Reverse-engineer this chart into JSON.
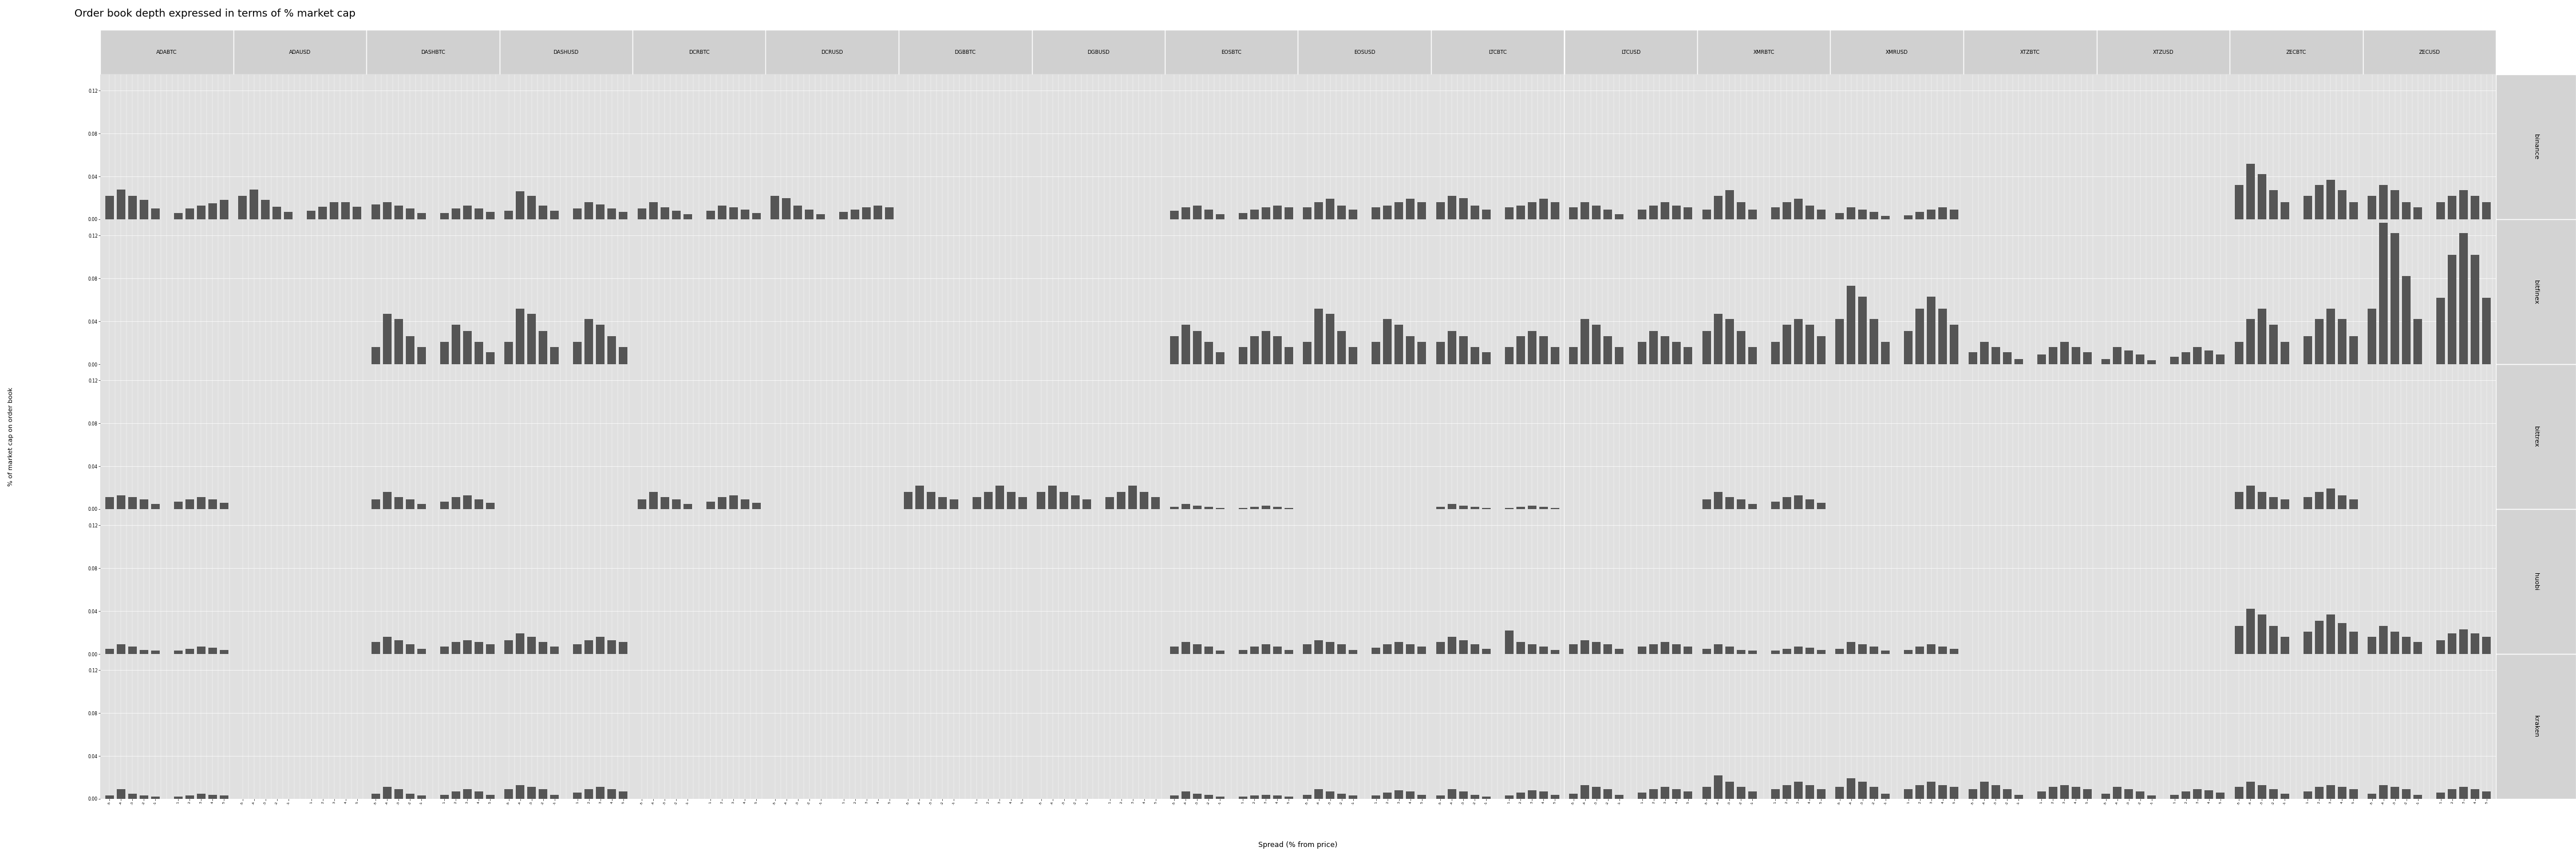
{
  "title": "Order book depth expressed in terms of % market cap",
  "xlabel": "Spread (% from price)",
  "ylabel": "% of market cap on order book",
  "assets": [
    "ADABTC",
    "ADAUSD",
    "DASHBTC",
    "DASHUSD",
    "DCRBTC",
    "DCRUSD",
    "DGBBTC",
    "DGBUSD",
    "EOSBTC",
    "EOSUSD",
    "LTCBTC",
    "LTCUSD",
    "XMRBTC",
    "XMRUSD",
    "XTZBTC",
    "XTZUSD",
    "ZECBTC",
    "ZECUSD"
  ],
  "exchanges": [
    "binance",
    "bitfinex",
    "bittrex",
    "huobi",
    "kraken"
  ],
  "spread_x": [
    -5,
    -4,
    -3,
    -2,
    -1,
    1,
    2,
    3,
    4,
    5
  ],
  "ylim": [
    0,
    0.135
  ],
  "yticks": [
    0.0,
    0.04,
    0.08,
    0.12
  ],
  "bar_color": "#555555",
  "panel_bg": "#e0e0e0",
  "header_bg": "#d0d0d0",
  "exchange_bg": "#d3d3d3",
  "fig_bg": "#ffffff",
  "data": {
    "binance": {
      "ADABTC": [
        0.022,
        0.028,
        0.022,
        0.018,
        0.01,
        0.006,
        0.01,
        0.013,
        0.015,
        0.018
      ],
      "ADAUSD": [
        0.022,
        0.028,
        0.018,
        0.012,
        0.007,
        0.008,
        0.012,
        0.016,
        0.016,
        0.012
      ],
      "DASHBTC": [
        0.014,
        0.016,
        0.013,
        0.01,
        0.006,
        0.006,
        0.01,
        0.013,
        0.01,
        0.007
      ],
      "DASHUSD": [
        0.008,
        0.026,
        0.022,
        0.013,
        0.008,
        0.01,
        0.016,
        0.014,
        0.01,
        0.007
      ],
      "DCRBTC": [
        0.01,
        0.016,
        0.011,
        0.008,
        0.005,
        0.008,
        0.013,
        0.011,
        0.009,
        0.006
      ],
      "DCRUSD": [
        0.022,
        0.02,
        0.013,
        0.009,
        0.005,
        0.007,
        0.009,
        0.011,
        0.013,
        0.011
      ],
      "DGBBTC": [
        0.0,
        0.0,
        0.0,
        0.0,
        0.0,
        0.0,
        0.0,
        0.0,
        0.0,
        0.0
      ],
      "DGBUSD": [
        0.0,
        0.0,
        0.0,
        0.0,
        0.0,
        0.0,
        0.0,
        0.0,
        0.0,
        0.0
      ],
      "EOSBTC": [
        0.008,
        0.011,
        0.013,
        0.009,
        0.005,
        0.006,
        0.009,
        0.011,
        0.013,
        0.011
      ],
      "EOSUSD": [
        0.011,
        0.016,
        0.019,
        0.013,
        0.009,
        0.011,
        0.013,
        0.016,
        0.019,
        0.016
      ],
      "LTCBTC": [
        0.016,
        0.022,
        0.02,
        0.013,
        0.009,
        0.011,
        0.013,
        0.016,
        0.019,
        0.016
      ],
      "LTCUSD": [
        0.011,
        0.016,
        0.013,
        0.009,
        0.005,
        0.009,
        0.013,
        0.016,
        0.013,
        0.011
      ],
      "XMRBTC": [
        0.009,
        0.022,
        0.027,
        0.016,
        0.009,
        0.011,
        0.016,
        0.019,
        0.013,
        0.009
      ],
      "XMRUSD": [
        0.006,
        0.011,
        0.009,
        0.007,
        0.003,
        0.004,
        0.007,
        0.009,
        0.011,
        0.009
      ],
      "XTZBTC": [
        0.0,
        0.0,
        0.0,
        0.0,
        0.0,
        0.0,
        0.0,
        0.0,
        0.0,
        0.0
      ],
      "XTZUSD": [
        0.0,
        0.0,
        0.0,
        0.0,
        0.0,
        0.0,
        0.0,
        0.0,
        0.0,
        0.0
      ],
      "ZECBTC": [
        0.032,
        0.052,
        0.042,
        0.027,
        0.016,
        0.022,
        0.032,
        0.037,
        0.027,
        0.016
      ],
      "ZECUSD": [
        0.022,
        0.032,
        0.027,
        0.016,
        0.011,
        0.016,
        0.022,
        0.027,
        0.022,
        0.016
      ]
    },
    "bitfinex": {
      "ADABTC": [
        0.0,
        0.0,
        0.0,
        0.0,
        0.0,
        0.0,
        0.0,
        0.0,
        0.0,
        0.0
      ],
      "ADAUSD": [
        0.0,
        0.0,
        0.0,
        0.0,
        0.0,
        0.0,
        0.0,
        0.0,
        0.0,
        0.0
      ],
      "DASHBTC": [
        0.016,
        0.047,
        0.042,
        0.026,
        0.016,
        0.021,
        0.037,
        0.031,
        0.021,
        0.011
      ],
      "DASHUSD": [
        0.021,
        0.052,
        0.047,
        0.031,
        0.016,
        0.021,
        0.042,
        0.037,
        0.026,
        0.016
      ],
      "DCRBTC": [
        0.0,
        0.0,
        0.0,
        0.0,
        0.0,
        0.0,
        0.0,
        0.0,
        0.0,
        0.0
      ],
      "DCRUSD": [
        0.0,
        0.0,
        0.0,
        0.0,
        0.0,
        0.0,
        0.0,
        0.0,
        0.0,
        0.0
      ],
      "DGBBTC": [
        0.0,
        0.0,
        0.0,
        0.0,
        0.0,
        0.0,
        0.0,
        0.0,
        0.0,
        0.0
      ],
      "DGBUSD": [
        0.0,
        0.0,
        0.0,
        0.0,
        0.0,
        0.0,
        0.0,
        0.0,
        0.0,
        0.0
      ],
      "EOSBTC": [
        0.026,
        0.037,
        0.031,
        0.021,
        0.011,
        0.016,
        0.026,
        0.031,
        0.026,
        0.016
      ],
      "EOSUSD": [
        0.021,
        0.052,
        0.047,
        0.031,
        0.016,
        0.021,
        0.042,
        0.037,
        0.026,
        0.021
      ],
      "LTCBTC": [
        0.021,
        0.031,
        0.026,
        0.016,
        0.011,
        0.016,
        0.026,
        0.031,
        0.026,
        0.016
      ],
      "LTCUSD": [
        0.016,
        0.042,
        0.037,
        0.026,
        0.016,
        0.021,
        0.031,
        0.026,
        0.021,
        0.016
      ],
      "XMRBTC": [
        0.031,
        0.047,
        0.042,
        0.031,
        0.016,
        0.021,
        0.037,
        0.042,
        0.037,
        0.026
      ],
      "XMRUSD": [
        0.042,
        0.073,
        0.063,
        0.042,
        0.021,
        0.031,
        0.052,
        0.063,
        0.052,
        0.037
      ],
      "XTZBTC": [
        0.011,
        0.021,
        0.016,
        0.011,
        0.005,
        0.009,
        0.016,
        0.021,
        0.016,
        0.011
      ],
      "XTZUSD": [
        0.005,
        0.016,
        0.013,
        0.009,
        0.004,
        0.007,
        0.011,
        0.016,
        0.013,
        0.009
      ],
      "ZECBTC": [
        0.021,
        0.042,
        0.052,
        0.037,
        0.021,
        0.026,
        0.042,
        0.052,
        0.042,
        0.026
      ],
      "ZECUSD": [
        0.052,
        0.132,
        0.122,
        0.082,
        0.042,
        0.062,
        0.102,
        0.122,
        0.102,
        0.062
      ]
    },
    "bittrex": {
      "ADABTC": [
        0.011,
        0.013,
        0.011,
        0.009,
        0.005,
        0.007,
        0.009,
        0.011,
        0.009,
        0.006
      ],
      "ADAUSD": [
        0.0,
        0.0,
        0.0,
        0.0,
        0.0,
        0.0,
        0.0,
        0.0,
        0.0,
        0.0
      ],
      "DASHBTC": [
        0.009,
        0.016,
        0.011,
        0.009,
        0.005,
        0.007,
        0.011,
        0.013,
        0.009,
        0.006
      ],
      "DASHUSD": [
        0.0,
        0.0,
        0.0,
        0.0,
        0.0,
        0.0,
        0.0,
        0.0,
        0.0,
        0.0
      ],
      "DCRBTC": [
        0.009,
        0.016,
        0.011,
        0.009,
        0.005,
        0.007,
        0.011,
        0.013,
        0.009,
        0.006
      ],
      "DCRUSD": [
        0.0,
        0.0,
        0.0,
        0.0,
        0.0,
        0.0,
        0.0,
        0.0,
        0.0,
        0.0
      ],
      "DGBBTC": [
        0.016,
        0.022,
        0.016,
        0.011,
        0.009,
        0.011,
        0.016,
        0.022,
        0.016,
        0.011
      ],
      "DGBUSD": [
        0.016,
        0.022,
        0.016,
        0.013,
        0.009,
        0.011,
        0.016,
        0.022,
        0.016,
        0.011
      ],
      "EOSBTC": [
        0.002,
        0.005,
        0.003,
        0.002,
        0.001,
        0.001,
        0.002,
        0.003,
        0.002,
        0.001
      ],
      "EOSUSD": [
        0.0,
        0.0,
        0.0,
        0.0,
        0.0,
        0.0,
        0.0,
        0.0,
        0.0,
        0.0
      ],
      "LTCBTC": [
        0.002,
        0.005,
        0.003,
        0.002,
        0.001,
        0.001,
        0.002,
        0.003,
        0.002,
        0.001
      ],
      "LTCUSD": [
        0.0,
        0.0,
        0.0,
        0.0,
        0.0,
        0.0,
        0.0,
        0.0,
        0.0,
        0.0
      ],
      "XMRBTC": [
        0.009,
        0.016,
        0.011,
        0.009,
        0.005,
        0.007,
        0.011,
        0.013,
        0.009,
        0.006
      ],
      "XMRUSD": [
        0.0,
        0.0,
        0.0,
        0.0,
        0.0,
        0.0,
        0.0,
        0.0,
        0.0,
        0.0
      ],
      "XTZBTC": [
        0.0,
        0.0,
        0.0,
        0.0,
        0.0,
        0.0,
        0.0,
        0.0,
        0.0,
        0.0
      ],
      "XTZUSD": [
        0.0,
        0.0,
        0.0,
        0.0,
        0.0,
        0.0,
        0.0,
        0.0,
        0.0,
        0.0
      ],
      "ZECBTC": [
        0.016,
        0.022,
        0.016,
        0.011,
        0.009,
        0.011,
        0.016,
        0.019,
        0.013,
        0.009
      ],
      "ZECUSD": [
        0.0,
        0.0,
        0.0,
        0.0,
        0.0,
        0.0,
        0.0,
        0.0,
        0.0,
        0.0
      ]
    },
    "huobi": {
      "ADABTC": [
        0.005,
        0.009,
        0.007,
        0.004,
        0.003,
        0.003,
        0.005,
        0.007,
        0.006,
        0.004
      ],
      "ADAUSD": [
        0.0,
        0.0,
        0.0,
        0.0,
        0.0,
        0.0,
        0.0,
        0.0,
        0.0,
        0.0
      ],
      "DASHBTC": [
        0.011,
        0.016,
        0.013,
        0.009,
        0.005,
        0.007,
        0.011,
        0.013,
        0.011,
        0.009
      ],
      "DASHUSD": [
        0.013,
        0.019,
        0.016,
        0.011,
        0.007,
        0.009,
        0.013,
        0.016,
        0.013,
        0.011
      ],
      "DCRBTC": [
        0.0,
        0.0,
        0.0,
        0.0,
        0.0,
        0.0,
        0.0,
        0.0,
        0.0,
        0.0
      ],
      "DCRUSD": [
        0.0,
        0.0,
        0.0,
        0.0,
        0.0,
        0.0,
        0.0,
        0.0,
        0.0,
        0.0
      ],
      "DGBBTC": [
        0.0,
        0.0,
        0.0,
        0.0,
        0.0,
        0.0,
        0.0,
        0.0,
        0.0,
        0.0
      ],
      "DGBUSD": [
        0.0,
        0.0,
        0.0,
        0.0,
        0.0,
        0.0,
        0.0,
        0.0,
        0.0,
        0.0
      ],
      "EOSBTC": [
        0.007,
        0.011,
        0.009,
        0.007,
        0.003,
        0.004,
        0.007,
        0.009,
        0.007,
        0.004
      ],
      "EOSUSD": [
        0.009,
        0.013,
        0.011,
        0.009,
        0.004,
        0.006,
        0.009,
        0.011,
        0.009,
        0.007
      ],
      "LTCBTC": [
        0.011,
        0.016,
        0.013,
        0.009,
        0.005,
        0.022,
        0.011,
        0.009,
        0.007,
        0.004
      ],
      "LTCUSD": [
        0.009,
        0.013,
        0.011,
        0.009,
        0.005,
        0.007,
        0.009,
        0.011,
        0.009,
        0.007
      ],
      "XMRBTC": [
        0.005,
        0.009,
        0.007,
        0.004,
        0.003,
        0.003,
        0.005,
        0.007,
        0.006,
        0.004
      ],
      "XMRUSD": [
        0.005,
        0.011,
        0.009,
        0.007,
        0.003,
        0.004,
        0.007,
        0.009,
        0.007,
        0.005
      ],
      "XTZBTC": [
        0.0,
        0.0,
        0.0,
        0.0,
        0.0,
        0.0,
        0.0,
        0.0,
        0.0,
        0.0
      ],
      "XTZUSD": [
        0.0,
        0.0,
        0.0,
        0.0,
        0.0,
        0.0,
        0.0,
        0.0,
        0.0,
        0.0
      ],
      "ZECBTC": [
        0.026,
        0.042,
        0.037,
        0.026,
        0.016,
        0.021,
        0.031,
        0.037,
        0.029,
        0.021
      ],
      "ZECUSD": [
        0.016,
        0.026,
        0.021,
        0.016,
        0.011,
        0.013,
        0.019,
        0.023,
        0.019,
        0.016
      ]
    },
    "kraken": {
      "ADABTC": [
        0.003,
        0.009,
        0.005,
        0.003,
        0.002,
        0.002,
        0.003,
        0.005,
        0.004,
        0.003
      ],
      "ADAUSD": [
        0.0,
        0.0,
        0.0,
        0.0,
        0.0,
        0.0,
        0.0,
        0.0,
        0.0,
        0.0
      ],
      "DASHBTC": [
        0.005,
        0.011,
        0.009,
        0.005,
        0.003,
        0.004,
        0.007,
        0.009,
        0.007,
        0.004
      ],
      "DASHUSD": [
        0.009,
        0.013,
        0.011,
        0.009,
        0.004,
        0.006,
        0.009,
        0.011,
        0.009,
        0.007
      ],
      "DCRBTC": [
        0.0,
        0.0,
        0.0,
        0.0,
        0.0,
        0.0,
        0.0,
        0.0,
        0.0,
        0.0
      ],
      "DCRUSD": [
        0.0,
        0.0,
        0.0,
        0.0,
        0.0,
        0.0,
        0.0,
        0.0,
        0.0,
        0.0
      ],
      "DGBBTC": [
        0.0,
        0.0,
        0.0,
        0.0,
        0.0,
        0.0,
        0.0,
        0.0,
        0.0,
        0.0
      ],
      "DGBUSD": [
        0.0,
        0.0,
        0.0,
        0.0,
        0.0,
        0.0,
        0.0,
        0.0,
        0.0,
        0.0
      ],
      "EOSBTC": [
        0.003,
        0.007,
        0.005,
        0.004,
        0.002,
        0.002,
        0.003,
        0.004,
        0.003,
        0.002
      ],
      "EOSUSD": [
        0.004,
        0.009,
        0.007,
        0.005,
        0.003,
        0.003,
        0.006,
        0.008,
        0.007,
        0.004
      ],
      "LTCBTC": [
        0.003,
        0.009,
        0.007,
        0.004,
        0.002,
        0.003,
        0.006,
        0.008,
        0.007,
        0.004
      ],
      "LTCUSD": [
        0.005,
        0.013,
        0.011,
        0.009,
        0.004,
        0.006,
        0.009,
        0.011,
        0.009,
        0.007
      ],
      "XMRBTC": [
        0.011,
        0.022,
        0.016,
        0.011,
        0.007,
        0.009,
        0.013,
        0.016,
        0.013,
        0.009
      ],
      "XMRUSD": [
        0.011,
        0.019,
        0.016,
        0.011,
        0.005,
        0.009,
        0.013,
        0.016,
        0.013,
        0.011
      ],
      "XTZBTC": [
        0.009,
        0.016,
        0.013,
        0.009,
        0.004,
        0.007,
        0.011,
        0.013,
        0.011,
        0.009
      ],
      "XTZUSD": [
        0.005,
        0.011,
        0.009,
        0.007,
        0.003,
        0.004,
        0.007,
        0.009,
        0.008,
        0.006
      ],
      "ZECBTC": [
        0.011,
        0.016,
        0.013,
        0.009,
        0.005,
        0.007,
        0.011,
        0.013,
        0.011,
        0.009
      ],
      "ZECUSD": [
        0.005,
        0.013,
        0.011,
        0.009,
        0.004,
        0.006,
        0.009,
        0.011,
        0.009,
        0.007
      ]
    }
  }
}
